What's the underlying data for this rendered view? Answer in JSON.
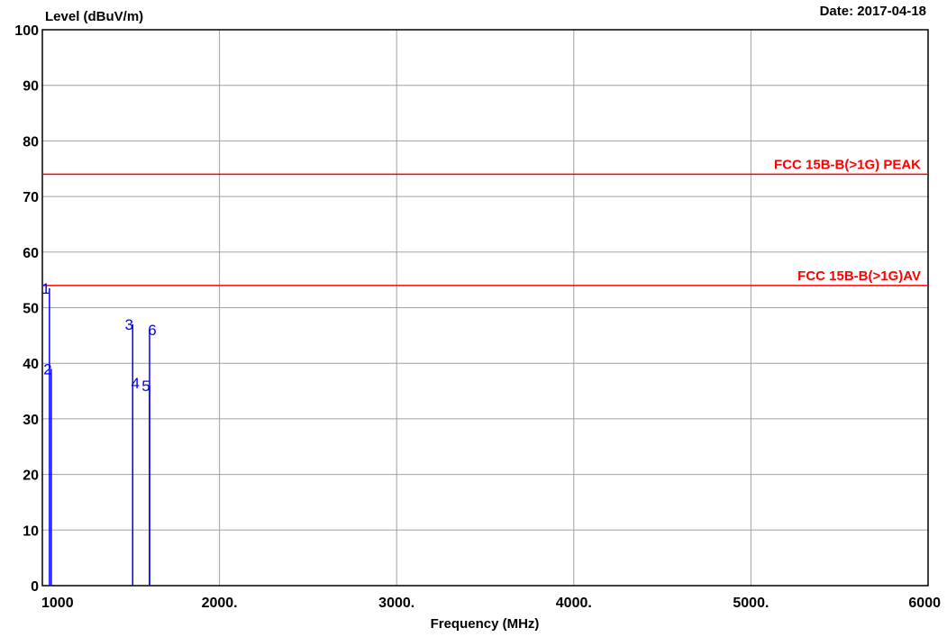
{
  "chart_data": {
    "type": "line",
    "ylabel": "Level (dBuV/m)",
    "date_label": "Date: 2017-04-18",
    "xlabel": "Frequency (MHz)",
    "xlim": [
      1000,
      6000
    ],
    "ylim": [
      0,
      100
    ],
    "x_ticks": [
      1000,
      2000,
      3000,
      4000,
      5000,
      6000
    ],
    "x_tick_labels": [
      "1000",
      "2000.",
      "3000.",
      "4000.",
      "5000.",
      "6000"
    ],
    "y_ticks": [
      0,
      10,
      20,
      30,
      40,
      50,
      60,
      70,
      80,
      90,
      100
    ],
    "y_tick_labels": [
      "0",
      "10",
      "20",
      "30",
      "40",
      "50",
      "60",
      "70",
      "80",
      "90",
      "100"
    ],
    "grid": true,
    "limit_lines": [
      {
        "name": "FCC 15B-B(>1G) PEAK",
        "value": 74,
        "color": "#ff0000"
      },
      {
        "name": "FCC 15B-B(>1G)AV",
        "value": 54,
        "color": "#ff0000"
      }
    ],
    "markers": [
      {
        "label": "1",
        "x": 1040,
        "y": 53.5
      },
      {
        "label": "2",
        "x": 1050,
        "y": 39
      },
      {
        "label": "3",
        "x": 1510,
        "y": 47
      },
      {
        "label": "4",
        "x": 1510,
        "y": 36.5
      },
      {
        "label": "5",
        "x": 1605,
        "y": 36
      },
      {
        "label": "6",
        "x": 1605,
        "y": 46
      }
    ],
    "marker_color": "#0000ff"
  }
}
